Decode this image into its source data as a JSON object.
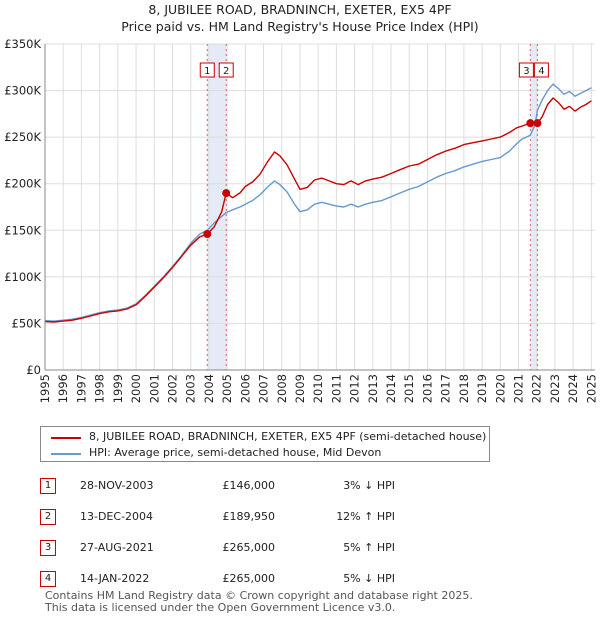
{
  "header": {
    "title_line1": "8, JUBILEE ROAD, BRADNINCH, EXETER, EX5 4PF",
    "title_line2": "Price paid vs. HM Land Registry's House Price Index (HPI)"
  },
  "chart_data": {
    "type": "line",
    "title": "8, JUBILEE ROAD, BRADNINCH, EXETER, EX5 4PF — Price paid vs. HM Land Registry's House Price Index (HPI)",
    "xlabel": "",
    "ylabel": "",
    "xlim": [
      1995,
      2025.2
    ],
    "ylim": [
      0,
      350000
    ],
    "x_ticks": [
      "1995",
      "1996",
      "1997",
      "1998",
      "1999",
      "2000",
      "2001",
      "2002",
      "2003",
      "2004",
      "2005",
      "2006",
      "2007",
      "2008",
      "2009",
      "2010",
      "2011",
      "2012",
      "2013",
      "2014",
      "2015",
      "2016",
      "2017",
      "2018",
      "2019",
      "2020",
      "2021",
      "2022",
      "2023",
      "2024",
      "2025"
    ],
    "y_ticks": [
      0,
      50000,
      100000,
      150000,
      200000,
      250000,
      300000,
      350000
    ],
    "y_tick_labels": [
      "£0",
      "£50K",
      "£100K",
      "£150K",
      "£200K",
      "£250K",
      "£300K",
      "£350K"
    ],
    "grid": true,
    "series": [
      {
        "name": "8, JUBILEE ROAD, BRADNINCH, EXETER, EX5 4PF (semi-detached house)",
        "color": "#cc0000",
        "points": [
          [
            1995.0,
            52000
          ],
          [
            1995.5,
            51500
          ],
          [
            1996.0,
            52500
          ],
          [
            1996.5,
            53500
          ],
          [
            1997.0,
            55500
          ],
          [
            1997.5,
            58000
          ],
          [
            1998.0,
            60500
          ],
          [
            1998.5,
            62500
          ],
          [
            1999.0,
            63500
          ],
          [
            1999.5,
            65500
          ],
          [
            2000.0,
            70000
          ],
          [
            2000.5,
            79000
          ],
          [
            2001.0,
            89000
          ],
          [
            2001.5,
            99000
          ],
          [
            2002.0,
            110000
          ],
          [
            2002.5,
            122000
          ],
          [
            2003.0,
            134000
          ],
          [
            2003.5,
            143000
          ],
          [
            2003.91,
            146000
          ],
          [
            2004.3,
            154000
          ],
          [
            2004.7,
            170000
          ],
          [
            2004.95,
            189950
          ],
          [
            2005.3,
            185000
          ],
          [
            2005.7,
            190000
          ],
          [
            2006.0,
            197000
          ],
          [
            2006.4,
            202000
          ],
          [
            2006.8,
            210000
          ],
          [
            2007.2,
            223000
          ],
          [
            2007.6,
            234000
          ],
          [
            2007.9,
            230000
          ],
          [
            2008.3,
            220000
          ],
          [
            2008.7,
            205000
          ],
          [
            2009.0,
            194000
          ],
          [
            2009.4,
            196000
          ],
          [
            2009.8,
            204000
          ],
          [
            2010.2,
            206000
          ],
          [
            2010.6,
            203000
          ],
          [
            2011.0,
            200000
          ],
          [
            2011.4,
            199000
          ],
          [
            2011.8,
            203000
          ],
          [
            2012.2,
            199000
          ],
          [
            2012.6,
            203000
          ],
          [
            2013.0,
            205000
          ],
          [
            2013.5,
            207000
          ],
          [
            2014.0,
            211000
          ],
          [
            2014.5,
            215000
          ],
          [
            2015.0,
            219000
          ],
          [
            2015.5,
            221000
          ],
          [
            2016.0,
            226000
          ],
          [
            2016.5,
            231000
          ],
          [
            2017.0,
            235000
          ],
          [
            2017.5,
            238000
          ],
          [
            2018.0,
            242000
          ],
          [
            2018.5,
            244000
          ],
          [
            2019.0,
            246000
          ],
          [
            2019.5,
            248000
          ],
          [
            2020.0,
            250000
          ],
          [
            2020.5,
            255000
          ],
          [
            2020.9,
            260000
          ],
          [
            2021.2,
            262000
          ],
          [
            2021.65,
            265000
          ],
          [
            2021.9,
            265500
          ],
          [
            2022.04,
            265000
          ],
          [
            2022.3,
            272000
          ],
          [
            2022.6,
            285000
          ],
          [
            2022.9,
            292000
          ],
          [
            2023.2,
            287000
          ],
          [
            2023.5,
            280000
          ],
          [
            2023.8,
            283000
          ],
          [
            2024.1,
            278000
          ],
          [
            2024.4,
            282000
          ],
          [
            2024.7,
            285000
          ],
          [
            2025.0,
            289000
          ]
        ]
      },
      {
        "name": "HPI: Average price, semi-detached house, Mid Devon",
        "color": "#6699cc",
        "points": [
          [
            1995.0,
            53000
          ],
          [
            1995.5,
            52500
          ],
          [
            1996.0,
            53500
          ],
          [
            1996.5,
            54500
          ],
          [
            1997.0,
            56500
          ],
          [
            1997.5,
            59000
          ],
          [
            1998.0,
            61500
          ],
          [
            1998.5,
            63500
          ],
          [
            1999.0,
            64500
          ],
          [
            1999.5,
            66500
          ],
          [
            2000.0,
            71000
          ],
          [
            2000.5,
            80000
          ],
          [
            2001.0,
            90000
          ],
          [
            2001.5,
            100000
          ],
          [
            2002.0,
            111000
          ],
          [
            2002.5,
            123000
          ],
          [
            2003.0,
            136000
          ],
          [
            2003.5,
            146000
          ],
          [
            2003.91,
            150000
          ],
          [
            2004.3,
            158000
          ],
          [
            2004.7,
            165000
          ],
          [
            2004.95,
            169000
          ],
          [
            2005.3,
            172000
          ],
          [
            2005.7,
            175000
          ],
          [
            2006.0,
            178000
          ],
          [
            2006.4,
            182000
          ],
          [
            2006.8,
            188000
          ],
          [
            2007.2,
            196000
          ],
          [
            2007.6,
            203000
          ],
          [
            2007.9,
            199000
          ],
          [
            2008.3,
            191000
          ],
          [
            2008.7,
            178000
          ],
          [
            2009.0,
            170000
          ],
          [
            2009.4,
            172000
          ],
          [
            2009.8,
            178000
          ],
          [
            2010.2,
            180000
          ],
          [
            2010.6,
            178000
          ],
          [
            2011.0,
            176000
          ],
          [
            2011.4,
            175000
          ],
          [
            2011.8,
            178000
          ],
          [
            2012.2,
            175000
          ],
          [
            2012.6,
            178000
          ],
          [
            2013.0,
            180000
          ],
          [
            2013.5,
            182000
          ],
          [
            2014.0,
            186000
          ],
          [
            2014.5,
            190000
          ],
          [
            2015.0,
            194000
          ],
          [
            2015.5,
            197000
          ],
          [
            2016.0,
            202000
          ],
          [
            2016.5,
            207000
          ],
          [
            2017.0,
            211000
          ],
          [
            2017.5,
            214000
          ],
          [
            2018.0,
            218000
          ],
          [
            2018.5,
            221000
          ],
          [
            2019.0,
            224000
          ],
          [
            2019.5,
            226000
          ],
          [
            2020.0,
            228000
          ],
          [
            2020.5,
            235000
          ],
          [
            2020.9,
            243000
          ],
          [
            2021.2,
            248000
          ],
          [
            2021.65,
            252000
          ],
          [
            2021.9,
            263000
          ],
          [
            2022.04,
            279000
          ],
          [
            2022.3,
            290000
          ],
          [
            2022.6,
            300000
          ],
          [
            2022.9,
            307000
          ],
          [
            2023.2,
            302000
          ],
          [
            2023.5,
            296000
          ],
          [
            2023.8,
            299000
          ],
          [
            2024.1,
            294000
          ],
          [
            2024.4,
            297000
          ],
          [
            2024.7,
            300000
          ],
          [
            2025.0,
            303000
          ]
        ]
      }
    ],
    "sales": [
      {
        "label": "1",
        "x": 2003.91,
        "y": 146000
      },
      {
        "label": "2",
        "x": 2004.95,
        "y": 189950
      },
      {
        "label": "3",
        "x": 2021.65,
        "y": 265000
      },
      {
        "label": "4",
        "x": 2022.04,
        "y": 265000
      }
    ],
    "shaded_periods": [
      [
        2003.91,
        2004.95
      ],
      [
        2021.65,
        2022.04
      ]
    ]
  },
  "legend": {
    "red_label": "8, JUBILEE ROAD, BRADNINCH, EXETER, EX5 4PF (semi-detached house)",
    "blue_label": "HPI: Average price, semi-detached house, Mid Devon",
    "red_color": "#cc0000",
    "blue_color": "#6699cc"
  },
  "table": {
    "rows": [
      {
        "num": "1",
        "date": "28-NOV-2003",
        "price": "£146,000",
        "hpi": "3% ↓ HPI"
      },
      {
        "num": "2",
        "date": "13-DEC-2004",
        "price": "£189,950",
        "hpi": "12% ↑ HPI"
      },
      {
        "num": "3",
        "date": "27-AUG-2021",
        "price": "£265,000",
        "hpi": "5% ↑ HPI"
      },
      {
        "num": "4",
        "date": "14-JAN-2022",
        "price": "£265,000",
        "hpi": "5% ↓ HPI"
      }
    ]
  },
  "footer": {
    "line1": "Contains HM Land Registry data © Crown copyright and database right 2025.",
    "line2": "This data is licensed under the Open Government Licence v3.0."
  }
}
